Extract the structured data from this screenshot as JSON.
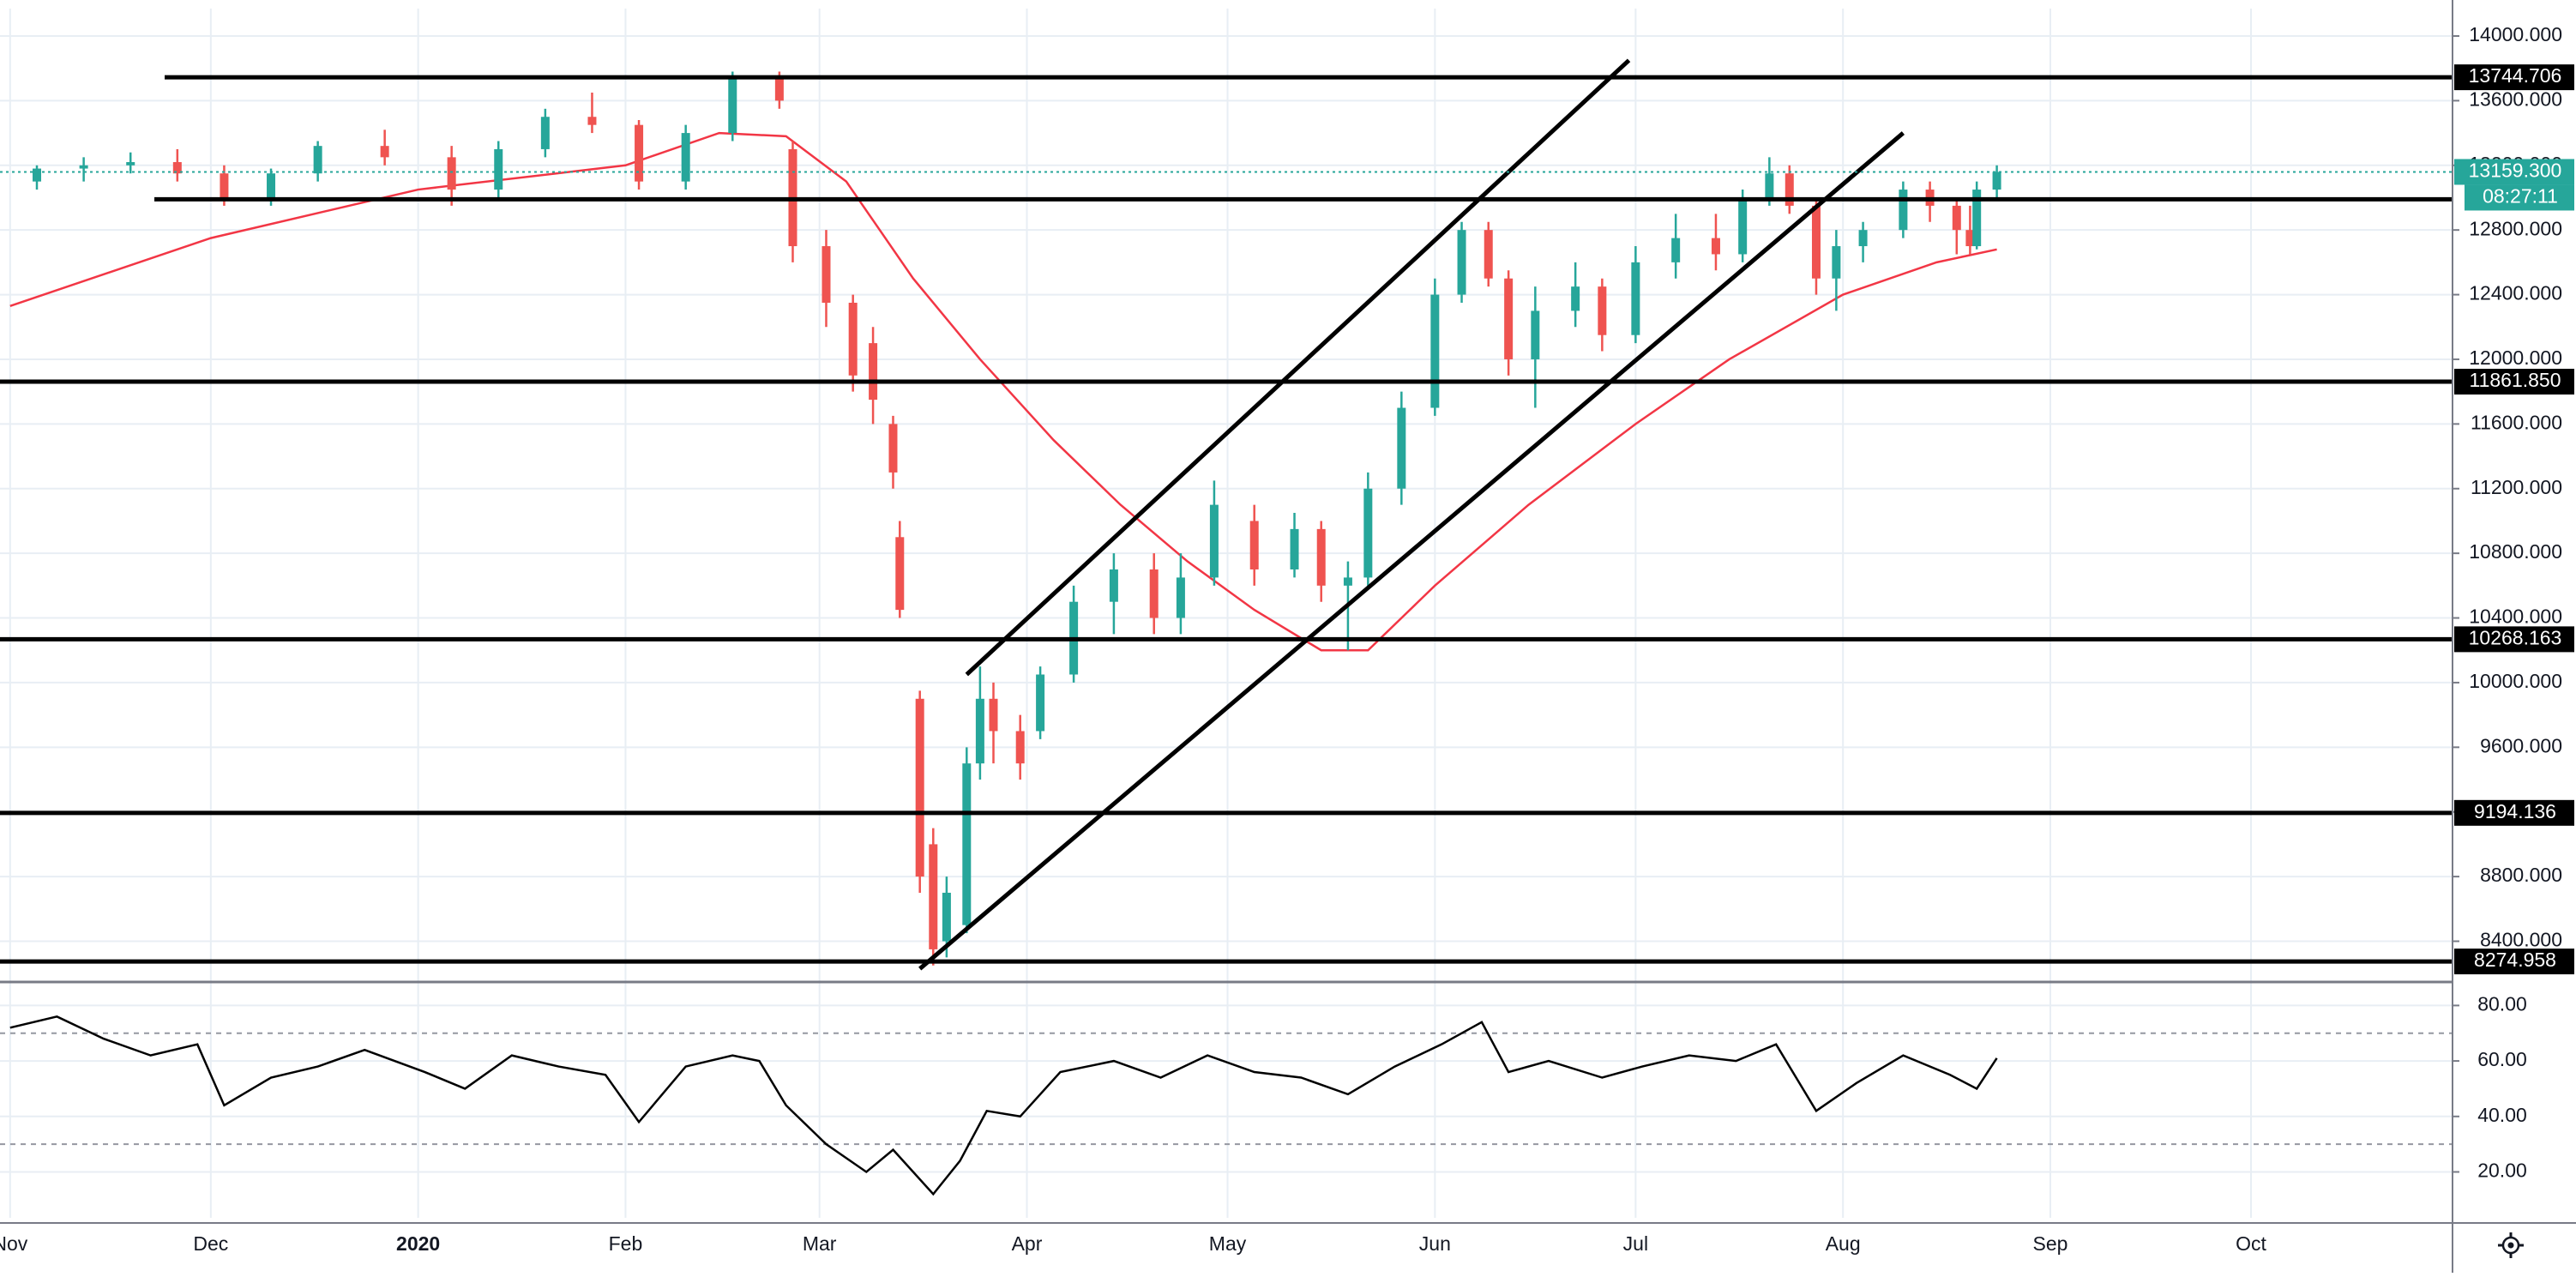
{
  "chart_data": {
    "type": "candlestick",
    "title": "",
    "colors": {
      "up": "#26a69a",
      "down": "#ef5350",
      "moving_average": "#f23645",
      "rsi_line": "#000000",
      "level_line": "#000000",
      "current_price": "#26a69a",
      "grid": "#e8eef4"
    },
    "price_axis": {
      "min": 8200,
      "max": 14100,
      "ticks": [
        "8400.000",
        "8800.000",
        "9200.000",
        "9600.000",
        "10000.000",
        "10400.000",
        "10800.000",
        "11200.000",
        "11600.000",
        "12000.000",
        "12400.000",
        "12800.000",
        "13200.000",
        "13600.000",
        "14000.000"
      ]
    },
    "time_axis": {
      "labels": [
        "Nov",
        "Dec",
        "2020",
        "Feb",
        "Mar",
        "Apr",
        "May",
        "Jun",
        "Jul",
        "Aug",
        "Sep",
        "Oct"
      ]
    },
    "horizontal_levels": [
      {
        "label": "13744.706",
        "value": 13744.706
      },
      {
        "label": "11861.850",
        "value": 11861.85
      },
      {
        "label": "10268.163",
        "value": 10268.163
      },
      {
        "label": "9194.136",
        "value": 9194.136
      },
      {
        "label": "8274.958",
        "value": 8274.958
      },
      {
        "label": "",
        "value": 12990
      }
    ],
    "current_price": {
      "label": "13159.300",
      "value": 13159.3,
      "countdown": "08:27:11"
    },
    "trendlines": [
      {
        "name": "channel-upper",
        "points": [
          [
            "2020-03-23",
            10050
          ],
          [
            "2020-06-30",
            13850
          ]
        ]
      },
      {
        "name": "channel-lower",
        "points": [
          [
            "2020-03-16",
            8230
          ],
          [
            "2020-08-10",
            13400
          ]
        ]
      }
    ],
    "moving_average": [
      [
        "2019-11-01",
        12330
      ],
      [
        "2019-12-01",
        12750
      ],
      [
        "2020-01-01",
        13050
      ],
      [
        "2020-02-01",
        13200
      ],
      [
        "2020-02-15",
        13400
      ],
      [
        "2020-02-25",
        13380
      ],
      [
        "2020-03-05",
        13100
      ],
      [
        "2020-03-15",
        12500
      ],
      [
        "2020-03-25",
        12000
      ],
      [
        "2020-04-05",
        11500
      ],
      [
        "2020-04-15",
        11100
      ],
      [
        "2020-04-25",
        10750
      ],
      [
        "2020-05-05",
        10450
      ],
      [
        "2020-05-15",
        10200
      ],
      [
        "2020-05-22",
        10200
      ],
      [
        "2020-06-01",
        10600
      ],
      [
        "2020-06-15",
        11100
      ],
      [
        "2020-07-01",
        11600
      ],
      [
        "2020-07-15",
        12000
      ],
      [
        "2020-08-01",
        12400
      ],
      [
        "2020-08-15",
        12600
      ],
      [
        "2020-08-24",
        12680
      ]
    ],
    "candles": [
      [
        "2019-11-05",
        13100,
        13200,
        13050,
        13180
      ],
      [
        "2019-11-12",
        13180,
        13250,
        13100,
        13200
      ],
      [
        "2019-11-19",
        13200,
        13280,
        13150,
        13220
      ],
      [
        "2019-11-26",
        13220,
        13300,
        13100,
        13150
      ],
      [
        "2019-12-03",
        13150,
        13200,
        12950,
        13000
      ],
      [
        "2019-12-10",
        13000,
        13180,
        12950,
        13150
      ],
      [
        "2019-12-17",
        13150,
        13350,
        13100,
        13320
      ],
      [
        "2019-12-27",
        13320,
        13420,
        13200,
        13250
      ],
      [
        "2020-01-06",
        13250,
        13320,
        12950,
        13050
      ],
      [
        "2020-01-13",
        13050,
        13350,
        13000,
        13300
      ],
      [
        "2020-01-20",
        13300,
        13550,
        13250,
        13500
      ],
      [
        "2020-01-27",
        13500,
        13650,
        13400,
        13450
      ],
      [
        "2020-02-03",
        13450,
        13480,
        13050,
        13100
      ],
      [
        "2020-02-10",
        13100,
        13450,
        13050,
        13400
      ],
      [
        "2020-02-17",
        13400,
        13780,
        13350,
        13740
      ],
      [
        "2020-02-24",
        13740,
        13780,
        13550,
        13600
      ],
      [
        "2020-02-26",
        13300,
        13350,
        12600,
        12700
      ],
      [
        "2020-03-02",
        12700,
        12800,
        12200,
        12350
      ],
      [
        "2020-03-06",
        12350,
        12400,
        11800,
        11900
      ],
      [
        "2020-03-09",
        12100,
        12200,
        11600,
        11750
      ],
      [
        "2020-03-12",
        11600,
        11650,
        11200,
        11300
      ],
      [
        "2020-03-13",
        10900,
        11000,
        10400,
        10450
      ],
      [
        "2020-03-16",
        9900,
        9950,
        8700,
        8800
      ],
      [
        "2020-03-18",
        9000,
        9100,
        8250,
        8350
      ],
      [
        "2020-03-20",
        8400,
        8800,
        8300,
        8700
      ],
      [
        "2020-03-23",
        8500,
        9600,
        8450,
        9500
      ],
      [
        "2020-03-25",
        9500,
        10100,
        9400,
        9900
      ],
      [
        "2020-03-27",
        9900,
        10000,
        9500,
        9700
      ],
      [
        "2020-03-31",
        9700,
        9800,
        9400,
        9500
      ],
      [
        "2020-04-03",
        9700,
        10100,
        9650,
        10050
      ],
      [
        "2020-04-08",
        10050,
        10600,
        10000,
        10500
      ],
      [
        "2020-04-14",
        10500,
        10800,
        10300,
        10700
      ],
      [
        "2020-04-20",
        10700,
        10800,
        10300,
        10400
      ],
      [
        "2020-04-24",
        10400,
        10800,
        10300,
        10650
      ],
      [
        "2020-04-29",
        10650,
        11250,
        10600,
        11100
      ],
      [
        "2020-05-05",
        11000,
        11100,
        10600,
        10700
      ],
      [
        "2020-05-11",
        10700,
        11050,
        10650,
        10950
      ],
      [
        "2020-05-15",
        10950,
        11000,
        10500,
        10600
      ],
      [
        "2020-05-19",
        10600,
        10750,
        10200,
        10650
      ],
      [
        "2020-05-22",
        10650,
        11300,
        10600,
        11200
      ],
      [
        "2020-05-27",
        11200,
        11800,
        11100,
        11700
      ],
      [
        "2020-06-01",
        11700,
        12500,
        11650,
        12400
      ],
      [
        "2020-06-05",
        12400,
        12850,
        12350,
        12800
      ],
      [
        "2020-06-09",
        12800,
        12850,
        12450,
        12500
      ],
      [
        "2020-06-12",
        12500,
        12550,
        11900,
        12000
      ],
      [
        "2020-06-16",
        12000,
        12450,
        11700,
        12300
      ],
      [
        "2020-06-22",
        12300,
        12600,
        12200,
        12450
      ],
      [
        "2020-06-26",
        12450,
        12500,
        12050,
        12150
      ],
      [
        "2020-07-01",
        12150,
        12700,
        12100,
        12600
      ],
      [
        "2020-07-07",
        12600,
        12900,
        12500,
        12750
      ],
      [
        "2020-07-13",
        12750,
        12900,
        12550,
        12650
      ],
      [
        "2020-07-17",
        12650,
        13050,
        12600,
        13000
      ],
      [
        "2020-07-21",
        13000,
        13250,
        12950,
        13150
      ],
      [
        "2020-07-24",
        13150,
        13200,
        12900,
        12950
      ],
      [
        "2020-07-28",
        12950,
        13000,
        12400,
        12500
      ],
      [
        "2020-07-31",
        12500,
        12800,
        12300,
        12700
      ],
      [
        "2020-08-04",
        12700,
        12850,
        12600,
        12800
      ],
      [
        "2020-08-10",
        12800,
        13100,
        12750,
        13050
      ],
      [
        "2020-08-14",
        13050,
        13100,
        12850,
        12950
      ],
      [
        "2020-08-18",
        12950,
        13000,
        12650,
        12800
      ],
      [
        "2020-08-20",
        12800,
        12950,
        12650,
        12700
      ],
      [
        "2020-08-21",
        12700,
        13100,
        12680,
        13050
      ],
      [
        "2020-08-24",
        13050,
        13200,
        13000,
        13159.3
      ]
    ],
    "rsi": {
      "axis_ticks": [
        "20.00",
        "40.00",
        "60.00",
        "80.00"
      ],
      "min": 5,
      "max": 86,
      "overbought": 70,
      "oversold": 30,
      "values": [
        [
          "2019-11-01",
          72
        ],
        [
          "2019-11-08",
          76
        ],
        [
          "2019-11-15",
          68
        ],
        [
          "2019-11-22",
          62
        ],
        [
          "2019-11-29",
          66
        ],
        [
          "2019-12-03",
          44
        ],
        [
          "2019-12-10",
          54
        ],
        [
          "2019-12-17",
          58
        ],
        [
          "2019-12-24",
          64
        ],
        [
          "2020-01-02",
          56
        ],
        [
          "2020-01-08",
          50
        ],
        [
          "2020-01-15",
          62
        ],
        [
          "2020-01-22",
          58
        ],
        [
          "2020-01-29",
          55
        ],
        [
          "2020-02-03",
          38
        ],
        [
          "2020-02-10",
          58
        ],
        [
          "2020-02-17",
          62
        ],
        [
          "2020-02-21",
          60
        ],
        [
          "2020-02-25",
          44
        ],
        [
          "2020-03-02",
          30
        ],
        [
          "2020-03-08",
          20
        ],
        [
          "2020-03-12",
          28
        ],
        [
          "2020-03-18",
          12
        ],
        [
          "2020-03-22",
          24
        ],
        [
          "2020-03-26",
          42
        ],
        [
          "2020-03-31",
          40
        ],
        [
          "2020-04-06",
          56
        ],
        [
          "2020-04-14",
          60
        ],
        [
          "2020-04-21",
          54
        ],
        [
          "2020-04-28",
          62
        ],
        [
          "2020-05-05",
          56
        ],
        [
          "2020-05-12",
          54
        ],
        [
          "2020-05-19",
          48
        ],
        [
          "2020-05-26",
          58
        ],
        [
          "2020-06-02",
          66
        ],
        [
          "2020-06-08",
          74
        ],
        [
          "2020-06-12",
          56
        ],
        [
          "2020-06-18",
          60
        ],
        [
          "2020-06-26",
          54
        ],
        [
          "2020-07-02",
          58
        ],
        [
          "2020-07-09",
          62
        ],
        [
          "2020-07-16",
          60
        ],
        [
          "2020-07-22",
          66
        ],
        [
          "2020-07-28",
          42
        ],
        [
          "2020-08-03",
          52
        ],
        [
          "2020-08-10",
          62
        ],
        [
          "2020-08-17",
          55
        ],
        [
          "2020-08-21",
          50
        ],
        [
          "2020-08-24",
          61
        ]
      ]
    }
  }
}
